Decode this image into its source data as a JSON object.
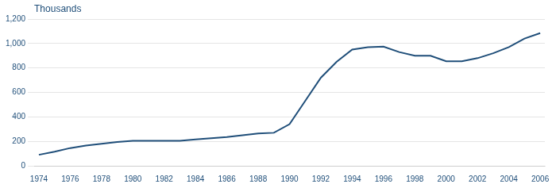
{
  "chart_data": {
    "type": "line",
    "ylabel": "Thousands",
    "x": [
      1974,
      1975,
      1976,
      1977,
      1978,
      1979,
      1980,
      1981,
      1982,
      1983,
      1984,
      1985,
      1986,
      1987,
      1988,
      1989,
      1990,
      1991,
      1992,
      1993,
      1994,
      1995,
      1996,
      1997,
      1998,
      1999,
      2000,
      2001,
      2002,
      2003,
      2004,
      2005,
      2006
    ],
    "values": [
      90,
      115,
      145,
      165,
      180,
      195,
      205,
      205,
      205,
      205,
      215,
      225,
      235,
      250,
      265,
      270,
      340,
      530,
      720,
      850,
      950,
      970,
      975,
      930,
      900,
      900,
      855,
      855,
      880,
      920,
      970,
      1040,
      1085
    ],
    "color": "#1F4E79",
    "xlim": [
      1973.7,
      2006.3
    ],
    "xticks": [
      1974,
      1976,
      1978,
      1980,
      1982,
      1984,
      1986,
      1988,
      1990,
      1992,
      1994,
      1996,
      1998,
      2000,
      2002,
      2004,
      2006
    ],
    "ylim": [
      0,
      1200
    ],
    "yticks": [
      0,
      200,
      400,
      600,
      800,
      {
        "value": 1000,
        "label": "1,000"
      },
      {
        "value": 1200,
        "label": "1,200"
      }
    ],
    "grid": "y"
  }
}
